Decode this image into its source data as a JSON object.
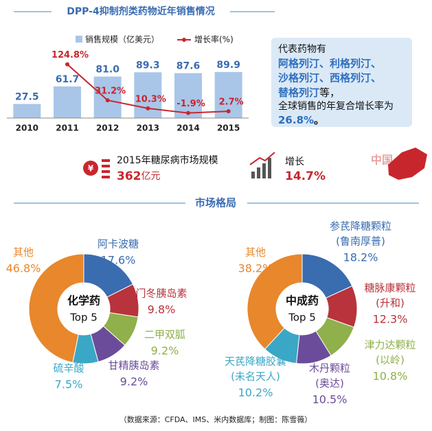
{
  "header": {
    "title": "DPP-4抑制剂类药物近年销售情况"
  },
  "callout": {
    "intro": "代表药物有",
    "drugs": [
      "阿格列汀、利格列汀、",
      "沙格列汀、西格列汀、",
      "替格列汀"
    ],
    "suffix": "等，",
    "line": "全球销售的年复合增长率为",
    "rate": "26.8%",
    "end": "。"
  },
  "stats": {
    "market_label": "2015年糖尿病市场规模",
    "market_value": "362",
    "market_unit": "亿元",
    "growth_label": "增长",
    "growth_value": "14.7%",
    "region": "中国"
  },
  "section_title": "市场格局",
  "source": "（数据来源：CFDA、IMS、米内数据库；制图：陈雪薇）",
  "chart_data": [
    {
      "type": "bar",
      "categories": [
        "2010",
        "2011",
        "2012",
        "2013",
        "2014",
        "2015"
      ],
      "ylim": [
        0,
        150
      ],
      "y2lim": [
        -15,
        185
      ],
      "series": [
        {
          "name": "销售规模（亿美元）",
          "color": "#a9c6e8",
          "label_color": "#3a6cb0",
          "values": [
            27.5,
            61.7,
            81.0,
            89.3,
            87.6,
            89.9
          ],
          "value_labels": [
            "27.5",
            "61.7",
            "81.0",
            "89.3",
            "87.6",
            "89.9"
          ]
        },
        {
          "name": "增长率(%)",
          "type": "line",
          "axis": "y2",
          "color": "#c8262d",
          "values": [
            null,
            124.8,
            31.2,
            10.3,
            -1.9,
            2.7
          ],
          "value_labels": [
            null,
            "124.8%",
            "31.2%",
            "10.3%",
            "-1.9%",
            "2.7%"
          ]
        }
      ]
    },
    {
      "type": "pie",
      "center_title": "化学药",
      "center_subtitle": "Top 5",
      "categories": [
        "阿卡波糖",
        "门冬胰岛素",
        "二甲双胍",
        "甘精胰岛素",
        "硫辛酸",
        "其他"
      ],
      "values": [
        17.6,
        9.8,
        9.2,
        9.2,
        7.5,
        46.8
      ],
      "value_labels": [
        "17.6%",
        "9.8%",
        "9.2%",
        "9.2%",
        "7.5%",
        "46.8%"
      ],
      "colors": [
        "#3a6cb0",
        "#b8333b",
        "#8fb04a",
        "#6b4c9a",
        "#3aa7c6",
        "#e8872b"
      ]
    },
    {
      "type": "pie",
      "center_title": "中成药",
      "center_subtitle": "Top 5",
      "categories": [
        "参芪降糖颗粒",
        "糖脉康颗粒",
        "津力达颗粒",
        "木丹颗粒",
        "天芪降糖胶囊",
        "其他"
      ],
      "sublabels": [
        "(鲁南厚普)",
        "(升和)",
        "(以岭)",
        "(奥达)",
        "(未名天人)",
        null
      ],
      "values": [
        18.2,
        12.3,
        10.8,
        10.5,
        10.2,
        38.2
      ],
      "value_labels": [
        "18.2%",
        "12.3%",
        "10.8%",
        "10.5%",
        "10.2%",
        "38.2%"
      ],
      "colors": [
        "#3a6cb0",
        "#b8333b",
        "#8fb04a",
        "#6b4c9a",
        "#3aa7c6",
        "#e8872b"
      ]
    }
  ]
}
